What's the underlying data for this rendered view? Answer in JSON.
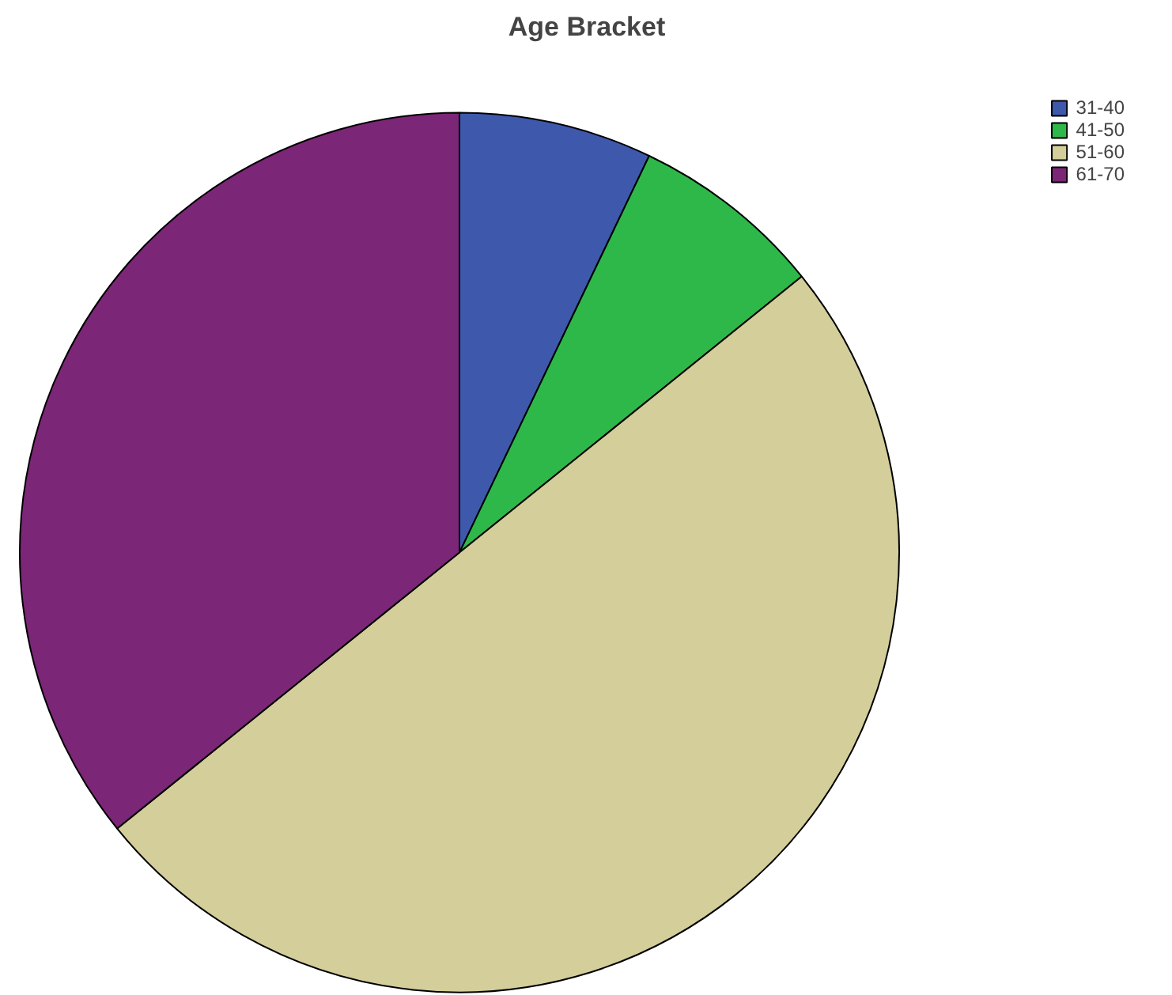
{
  "chart_data": {
    "type": "pie",
    "title": "Age Bracket",
    "categories": [
      "31-40",
      "41-50",
      "51-60",
      "61-70"
    ],
    "values": [
      7.1,
      7.1,
      50,
      35.8
    ],
    "colors": [
      "#3e58ac",
      "#2fb84a",
      "#d3ce9a",
      "#7b2677"
    ],
    "legend": "top right"
  }
}
